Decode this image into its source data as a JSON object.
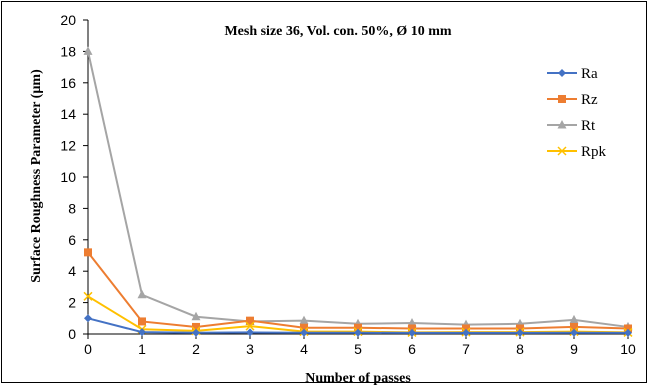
{
  "chart_data": {
    "type": "line",
    "title": "Mesh size 36, Vol. con. 50%, Ø 10 mm",
    "xlabel": "Number of passes",
    "ylabel": "Surface Roughness Parameter (µm)",
    "x": [
      0,
      1,
      2,
      3,
      4,
      5,
      6,
      7,
      8,
      9,
      10
    ],
    "xlim": [
      0,
      10
    ],
    "ylim": [
      0,
      20
    ],
    "y_ticks": [
      0,
      2,
      4,
      6,
      8,
      10,
      12,
      14,
      16,
      18,
      20
    ],
    "x_ticks": [
      0,
      1,
      2,
      3,
      4,
      5,
      6,
      7,
      8,
      9,
      10
    ],
    "grid": false,
    "legend_position": "right",
    "series": [
      {
        "name": "Ra",
        "color": "#4472C4",
        "marker": "diamond",
        "values": [
          1.0,
          0.12,
          0.08,
          0.1,
          0.08,
          0.08,
          0.07,
          0.07,
          0.07,
          0.08,
          0.07
        ]
      },
      {
        "name": "Rz",
        "color": "#ED7D31",
        "marker": "square",
        "values": [
          5.2,
          0.8,
          0.45,
          0.85,
          0.4,
          0.4,
          0.35,
          0.35,
          0.35,
          0.45,
          0.35
        ]
      },
      {
        "name": "Rt",
        "color": "#A5A5A5",
        "marker": "triangle",
        "values": [
          18.0,
          2.5,
          1.1,
          0.8,
          0.85,
          0.65,
          0.7,
          0.6,
          0.65,
          0.9,
          0.45
        ]
      },
      {
        "name": "Rpk",
        "color": "#FFC000",
        "marker": "x",
        "values": [
          2.4,
          0.3,
          0.2,
          0.5,
          0.15,
          0.15,
          0.1,
          0.12,
          0.12,
          0.15,
          0.1
        ]
      }
    ]
  }
}
